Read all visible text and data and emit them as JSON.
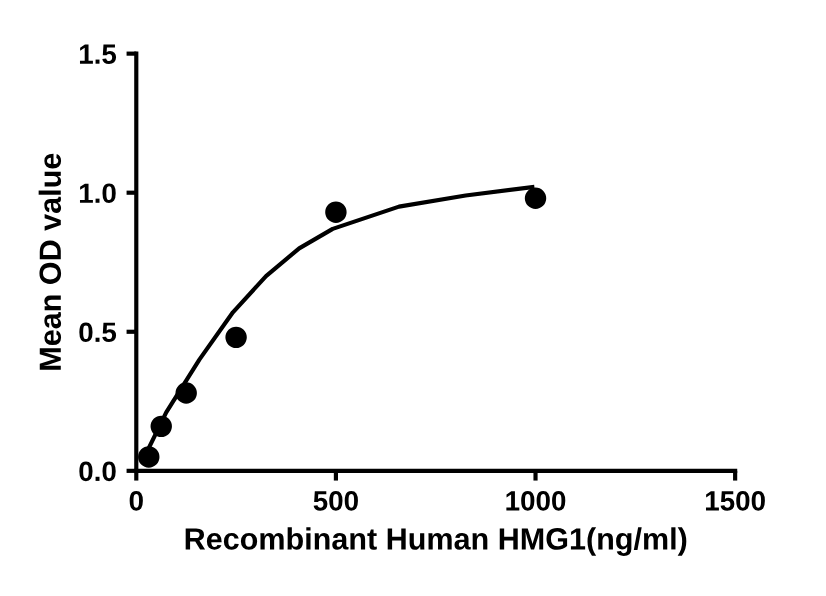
{
  "chart_data": {
    "type": "scatter",
    "xlabel": "Recombinant Human HMG1(ng/ml)",
    "ylabel": "Mean OD value",
    "x": [
      31.25,
      62.5,
      125,
      250,
      500,
      1000
    ],
    "series": [
      {
        "color": "#000000",
        "marker": "circle",
        "values": [
          0.05,
          0.16,
          0.28,
          0.48,
          0.93,
          0.98
        ]
      },
      {
        "type": "line",
        "color": "#000000",
        "marker": "none",
        "line_style": "solid",
        "x": [
          17,
          75,
          158,
          242,
          325,
          408,
          492,
          658,
          825,
          992
        ],
        "values": [
          0.04,
          0.21,
          0.4,
          0.57,
          0.7,
          0.8,
          0.87,
          0.95,
          0.99,
          1.02
        ]
      }
    ],
    "xlim": [
      0,
      1500
    ],
    "xticks": [
      0,
      500,
      1000,
      1500
    ],
    "ylim": [
      0,
      1.5
    ],
    "yticks": [
      {
        "value": 0,
        "label": "0.0"
      },
      0.5,
      {
        "value": 1,
        "label": "1.0"
      },
      1.5
    ],
    "grid": false,
    "legend": false
  }
}
